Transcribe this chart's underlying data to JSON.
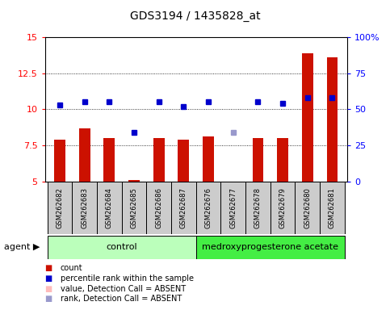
{
  "title": "GDS3194 / 1435828_at",
  "samples": [
    "GSM262682",
    "GSM262683",
    "GSM262684",
    "GSM262685",
    "GSM262686",
    "GSM262687",
    "GSM262676",
    "GSM262677",
    "GSM262678",
    "GSM262679",
    "GSM262680",
    "GSM262681"
  ],
  "bar_values": [
    7.9,
    8.7,
    8.0,
    5.1,
    8.0,
    7.9,
    8.1,
    4.95,
    8.0,
    8.0,
    13.9,
    13.6
  ],
  "bar_absent": [
    false,
    false,
    false,
    false,
    false,
    false,
    false,
    true,
    false,
    false,
    false,
    false
  ],
  "dot_values": [
    10.3,
    10.5,
    10.5,
    8.4,
    10.5,
    10.2,
    10.5,
    8.4,
    10.5,
    10.4,
    10.8,
    10.8
  ],
  "dot_absent": [
    false,
    false,
    false,
    false,
    false,
    false,
    false,
    true,
    false,
    false,
    false,
    false
  ],
  "ylim": [
    5,
    15
  ],
  "yticks_left": [
    5,
    7.5,
    10,
    12.5,
    15
  ],
  "yticks_right": [
    0,
    25,
    50,
    75,
    100
  ],
  "control_group": [
    0,
    1,
    2,
    3,
    4,
    5
  ],
  "treatment_group": [
    6,
    7,
    8,
    9,
    10,
    11
  ],
  "control_label": "control",
  "treatment_label": "medroxyprogesterone acetate",
  "agent_label": "agent",
  "control_color": "#bbffbb",
  "treatment_color": "#44ee44",
  "bar_color_present": "#cc1100",
  "bar_color_absent": "#ffbbbb",
  "dot_color_present": "#0000cc",
  "dot_color_absent": "#9999cc",
  "bg_color": "#cccccc",
  "legend_items": [
    "count",
    "percentile rank within the sample",
    "value, Detection Call = ABSENT",
    "rank, Detection Call = ABSENT"
  ],
  "legend_colors": [
    "#cc1100",
    "#0000cc",
    "#ffbbbb",
    "#9999cc"
  ]
}
